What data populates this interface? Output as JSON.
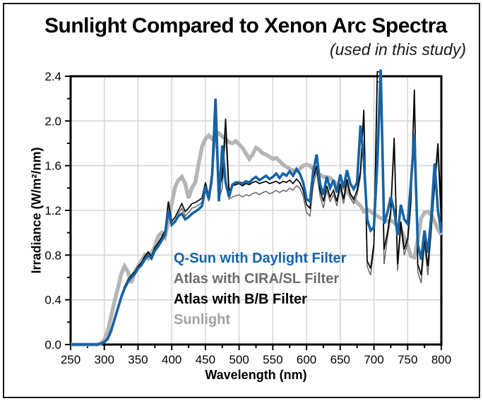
{
  "figure": {
    "title": "Sunlight Compared to Xenon Arc Spectra",
    "subtitle": "(used in this study)"
  },
  "chart_data": {
    "type": "line",
    "title": "Sunlight Compared to Xenon Arc Spectra",
    "subtitle": "(used in this study)",
    "xlabel": "Wavelength (nm)",
    "ylabel": "Irradiance (W/m²/nm)",
    "xlim": [
      250,
      800
    ],
    "ylim": [
      0,
      2.4
    ],
    "grid": true,
    "grid_color": "#d6d6d6",
    "frame_color": "#000000",
    "x_major_ticks": [
      250,
      300,
      350,
      400,
      450,
      500,
      550,
      600,
      650,
      700,
      750,
      800
    ],
    "x_minor_ticks": [
      275,
      325,
      375,
      425,
      475,
      525,
      575,
      625,
      675,
      725,
      775
    ],
    "y_major_ticks": [
      0,
      0.4,
      0.8,
      1.2,
      1.6,
      2.0,
      2.4
    ],
    "y_tick_labels": [
      "0.0",
      "0.4",
      "0.8",
      "1.2",
      "1.6",
      "2.0",
      "2.4"
    ],
    "y_minor_ticks": [
      0.2,
      0.6,
      1.0,
      1.4,
      1.8,
      2.2
    ],
    "x": [
      250,
      255,
      260,
      265,
      270,
      275,
      280,
      285,
      290,
      295,
      300,
      305,
      310,
      315,
      320,
      325,
      330,
      335,
      340,
      345,
      350,
      355,
      360,
      365,
      370,
      375,
      380,
      385,
      390,
      395,
      400,
      405,
      410,
      415,
      420,
      425,
      430,
      435,
      440,
      445,
      450,
      455,
      460,
      465,
      470,
      475,
      480,
      485,
      490,
      495,
      500,
      505,
      510,
      515,
      520,
      525,
      530,
      535,
      540,
      545,
      550,
      555,
      560,
      565,
      570,
      575,
      580,
      585,
      590,
      595,
      600,
      605,
      610,
      615,
      620,
      625,
      630,
      635,
      640,
      645,
      650,
      655,
      660,
      665,
      670,
      675,
      680,
      685,
      690,
      695,
      700,
      705,
      710,
      715,
      720,
      725,
      730,
      735,
      740,
      745,
      750,
      755,
      760,
      765,
      770,
      775,
      780,
      785,
      790,
      795,
      800
    ],
    "series": [
      {
        "name": "Sunlight",
        "color": "#b5b5b5",
        "width": 5.5,
        "values": [
          0,
          0,
          0,
          0,
          0,
          0,
          0,
          0,
          0,
          0.01,
          0.04,
          0.12,
          0.25,
          0.38,
          0.5,
          0.63,
          0.7,
          0.65,
          0.55,
          0.65,
          0.7,
          0.75,
          0.8,
          0.77,
          0.82,
          0.88,
          0.97,
          1.0,
          0.96,
          1.1,
          1.26,
          1.41,
          1.47,
          1.5,
          1.44,
          1.31,
          1.4,
          1.45,
          1.62,
          1.77,
          1.84,
          1.87,
          1.84,
          1.87,
          1.89,
          1.86,
          1.84,
          1.81,
          1.8,
          1.82,
          1.79,
          1.76,
          1.71,
          1.66,
          1.7,
          1.76,
          1.74,
          1.71,
          1.7,
          1.68,
          1.66,
          1.67,
          1.64,
          1.61,
          1.59,
          1.57,
          1.56,
          1.55,
          1.57,
          1.6,
          1.61,
          1.6,
          1.57,
          1.54,
          1.52,
          1.5,
          1.5,
          1.49,
          1.46,
          1.43,
          1.42,
          1.4,
          1.37,
          1.33,
          1.3,
          1.27,
          1.24,
          1.19,
          1.21,
          1.19,
          1.17,
          1.15,
          1.13,
          1.12,
          1.1,
          1.11,
          1.09,
          1.06,
          1.03,
          0.96,
          0.88,
          0.79,
          0.78,
          0.93,
          1.13,
          1.18,
          1.19,
          1.16,
          1.1,
          1.03,
          0.98
        ]
      },
      {
        "name": "Atlas with CIRA/SL Filter",
        "color": "#666666",
        "width": 1.5,
        "values": [
          0,
          0,
          0,
          0,
          0,
          0,
          0,
          0,
          0,
          0.01,
          0.03,
          0.06,
          0.13,
          0.23,
          0.33,
          0.43,
          0.51,
          0.57,
          0.61,
          0.64,
          0.69,
          0.72,
          0.78,
          0.82,
          0.78,
          0.85,
          0.89,
          0.94,
          1.0,
          1.24,
          1.08,
          1.11,
          1.17,
          1.22,
          1.15,
          1.18,
          1.22,
          1.23,
          1.25,
          1.27,
          1.4,
          1.28,
          1.45,
          1.9,
          1.3,
          1.4,
          1.9,
          1.3,
          1.32,
          1.33,
          1.34,
          1.32,
          1.34,
          1.33,
          1.35,
          1.36,
          1.34,
          1.36,
          1.37,
          1.35,
          1.36,
          1.38,
          1.36,
          1.38,
          1.37,
          1.4,
          1.38,
          1.42,
          1.4,
          1.33,
          1.18,
          1.15,
          1.42,
          1.55,
          1.33,
          1.22,
          1.38,
          1.28,
          1.34,
          1.24,
          1.4,
          1.26,
          1.44,
          1.31,
          1.26,
          1.34,
          1.5,
          2.05,
          0.7,
          0.62,
          0.85,
          2.35,
          2.35,
          0.72,
          0.95,
          1.15,
          1.8,
          0.66,
          1.05,
          0.8,
          0.9,
          1.25,
          2.2,
          0.65,
          0.55,
          0.9,
          0.62,
          1.0,
          1.4,
          1.72,
          1.05
        ]
      },
      {
        "name": "Atlas with B/B Filter",
        "color": "#000000",
        "width": 1.7,
        "values": [
          0,
          0,
          0,
          0,
          0,
          0,
          0,
          0,
          0,
          0.01,
          0.03,
          0.06,
          0.14,
          0.24,
          0.34,
          0.44,
          0.52,
          0.58,
          0.62,
          0.65,
          0.7,
          0.73,
          0.79,
          0.83,
          0.79,
          0.87,
          0.91,
          0.96,
          1.02,
          1.28,
          1.1,
          1.14,
          1.2,
          1.26,
          1.19,
          1.22,
          1.26,
          1.27,
          1.29,
          1.31,
          1.45,
          1.33,
          1.55,
          2.0,
          1.38,
          1.5,
          2.02,
          1.38,
          1.42,
          1.43,
          1.44,
          1.42,
          1.44,
          1.43,
          1.45,
          1.46,
          1.44,
          1.45,
          1.46,
          1.44,
          1.45,
          1.46,
          1.44,
          1.46,
          1.45,
          1.47,
          1.44,
          1.48,
          1.45,
          1.38,
          1.25,
          1.22,
          1.48,
          1.6,
          1.38,
          1.28,
          1.42,
          1.32,
          1.38,
          1.28,
          1.44,
          1.3,
          1.48,
          1.35,
          1.3,
          1.38,
          1.55,
          2.1,
          0.75,
          0.68,
          0.9,
          2.44,
          2.44,
          0.85,
          1.0,
          1.2,
          1.85,
          0.72,
          1.1,
          0.85,
          0.95,
          1.3,
          2.28,
          0.72,
          0.62,
          0.95,
          0.7,
          1.05,
          1.45,
          1.8,
          1.1
        ]
      },
      {
        "name": "Q-Sun with Daylight Filter",
        "color": "#1663a5",
        "width": 3.6,
        "values": [
          0,
          0,
          0,
          0,
          0,
          0,
          0,
          0,
          0,
          0.01,
          0.02,
          0.05,
          0.12,
          0.22,
          0.32,
          0.42,
          0.5,
          0.56,
          0.6,
          0.63,
          0.68,
          0.71,
          0.76,
          0.8,
          0.77,
          0.84,
          0.88,
          0.93,
          0.98,
          1.2,
          1.07,
          1.1,
          1.15,
          1.17,
          1.12,
          1.14,
          1.17,
          1.19,
          1.21,
          1.24,
          1.41,
          1.3,
          1.52,
          2.2,
          1.28,
          1.78,
          1.45,
          1.32,
          1.43,
          1.45,
          1.45,
          1.44,
          1.46,
          1.45,
          1.48,
          1.5,
          1.47,
          1.49,
          1.51,
          1.48,
          1.5,
          1.53,
          1.49,
          1.53,
          1.51,
          1.55,
          1.51,
          1.57,
          1.53,
          1.45,
          1.3,
          1.28,
          1.55,
          1.7,
          1.44,
          1.34,
          1.5,
          1.4,
          1.47,
          1.36,
          1.52,
          1.4,
          1.56,
          1.44,
          1.39,
          1.45,
          1.96,
          1.65,
          1.12,
          1.02,
          1.05,
          1.62,
          2.46,
          1.08,
          1.18,
          1.32,
          1.2,
          0.98,
          1.25,
          1.12,
          1.08,
          1.45,
          1.88,
          0.9,
          0.76,
          1.02,
          0.82,
          1.14,
          1.62,
          1.2,
          1.0
        ]
      }
    ],
    "legend": {
      "position": "inside-lower-left",
      "entries": [
        {
          "label": "Q-Sun with Daylight Filter",
          "color": "#1663a5"
        },
        {
          "label": "Atlas with CIRA/SL Filter",
          "color": "#6b6b6b"
        },
        {
          "label": "Atlas with B/B Filter",
          "color": "#000000"
        },
        {
          "label": "Sunlight",
          "color": "#a2a2a2"
        }
      ]
    }
  }
}
